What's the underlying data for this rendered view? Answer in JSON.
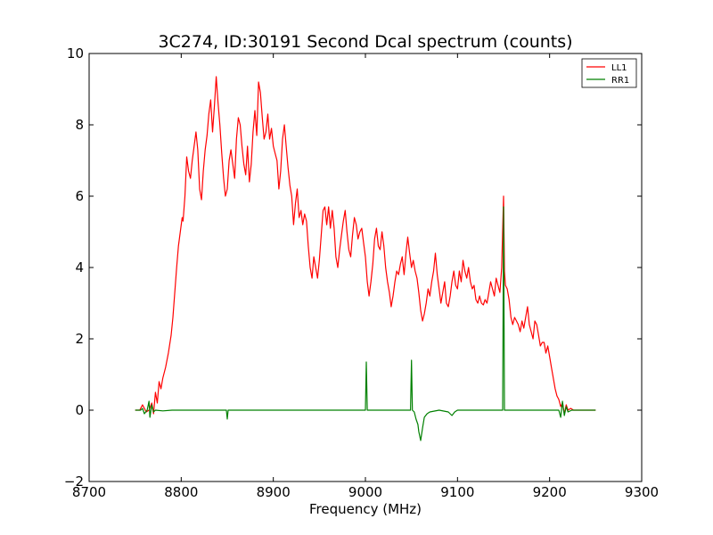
{
  "chart_data": {
    "type": "line",
    "title": "3C274, ID:30191 Second Dcal spectrum (counts)",
    "xlabel": "Frequency (MHz)",
    "ylabel": "",
    "xlim": [
      8700,
      9300
    ],
    "ylim": [
      -2,
      10
    ],
    "xticks": [
      8700,
      8800,
      8900,
      9000,
      9100,
      9200,
      9300
    ],
    "xtick_labels": [
      "8700",
      "8800",
      "8900",
      "9000",
      "9100",
      "9200",
      "9300"
    ],
    "yticks": [
      -2,
      0,
      2,
      4,
      6,
      8,
      10
    ],
    "ytick_labels": [
      "−2",
      "0",
      "2",
      "4",
      "6",
      "8",
      "10"
    ],
    "grid": false,
    "legend": {
      "placement": "top-right"
    },
    "series": [
      {
        "name": "LL1",
        "color": "#ff0000",
        "points": [
          [
            8750,
            0.0
          ],
          [
            8755,
            0.0
          ],
          [
            8758,
            0.15
          ],
          [
            8762,
            -0.05
          ],
          [
            8765,
            0.0
          ],
          [
            8768,
            0.2
          ],
          [
            8770,
            -0.1
          ],
          [
            8772,
            0.5
          ],
          [
            8774,
            0.2
          ],
          [
            8776,
            0.8
          ],
          [
            8778,
            0.6
          ],
          [
            8780,
            0.9
          ],
          [
            8783,
            1.2
          ],
          [
            8786,
            1.6
          ],
          [
            8789,
            2.1
          ],
          [
            8791,
            2.6
          ],
          [
            8793,
            3.3
          ],
          [
            8795,
            4.0
          ],
          [
            8797,
            4.6
          ],
          [
            8799,
            5.0
          ],
          [
            8801,
            5.4
          ],
          [
            8802,
            5.3
          ],
          [
            8804,
            6.0
          ],
          [
            8806,
            7.1
          ],
          [
            8808,
            6.7
          ],
          [
            8810,
            6.5
          ],
          [
            8812,
            7.0
          ],
          [
            8814,
            7.4
          ],
          [
            8816,
            7.8
          ],
          [
            8818,
            7.3
          ],
          [
            8820,
            6.2
          ],
          [
            8822,
            5.9
          ],
          [
            8824,
            6.7
          ],
          [
            8826,
            7.3
          ],
          [
            8828,
            7.7
          ],
          [
            8830,
            8.3
          ],
          [
            8832,
            8.7
          ],
          [
            8834,
            7.8
          ],
          [
            8836,
            8.5
          ],
          [
            8838,
            9.35
          ],
          [
            8840,
            8.6
          ],
          [
            8842,
            8.0
          ],
          [
            8844,
            7.2
          ],
          [
            8846,
            6.5
          ],
          [
            8848,
            6.0
          ],
          [
            8850,
            6.2
          ],
          [
            8852,
            7.0
          ],
          [
            8854,
            7.3
          ],
          [
            8856,
            6.9
          ],
          [
            8858,
            6.5
          ],
          [
            8860,
            7.6
          ],
          [
            8862,
            8.2
          ],
          [
            8864,
            8.0
          ],
          [
            8866,
            7.4
          ],
          [
            8868,
            6.9
          ],
          [
            8870,
            6.6
          ],
          [
            8872,
            7.4
          ],
          [
            8874,
            6.4
          ],
          [
            8876,
            6.9
          ],
          [
            8878,
            7.8
          ],
          [
            8880,
            8.4
          ],
          [
            8882,
            7.7
          ],
          [
            8884,
            9.2
          ],
          [
            8886,
            8.9
          ],
          [
            8888,
            8.2
          ],
          [
            8890,
            7.6
          ],
          [
            8892,
            7.8
          ],
          [
            8894,
            8.3
          ],
          [
            8896,
            7.6
          ],
          [
            8898,
            7.9
          ],
          [
            8900,
            7.4
          ],
          [
            8902,
            7.2
          ],
          [
            8904,
            7.0
          ],
          [
            8906,
            6.2
          ],
          [
            8908,
            6.7
          ],
          [
            8910,
            7.6
          ],
          [
            8912,
            8.0
          ],
          [
            8914,
            7.4
          ],
          [
            8916,
            6.8
          ],
          [
            8918,
            6.3
          ],
          [
            8920,
            6.0
          ],
          [
            8922,
            5.2
          ],
          [
            8924,
            5.8
          ],
          [
            8926,
            6.2
          ],
          [
            8928,
            5.4
          ],
          [
            8930,
            5.6
          ],
          [
            8932,
            5.2
          ],
          [
            8934,
            5.5
          ],
          [
            8936,
            5.3
          ],
          [
            8938,
            4.6
          ],
          [
            8940,
            4.0
          ],
          [
            8942,
            3.7
          ],
          [
            8944,
            4.3
          ],
          [
            8946,
            4.0
          ],
          [
            8948,
            3.7
          ],
          [
            8950,
            4.2
          ],
          [
            8952,
            4.9
          ],
          [
            8954,
            5.6
          ],
          [
            8956,
            5.7
          ],
          [
            8958,
            5.2
          ],
          [
            8960,
            5.7
          ],
          [
            8962,
            5.1
          ],
          [
            8964,
            5.6
          ],
          [
            8966,
            5.1
          ],
          [
            8968,
            4.3
          ],
          [
            8970,
            4.0
          ],
          [
            8972,
            4.5
          ],
          [
            8974,
            4.9
          ],
          [
            8976,
            5.3
          ],
          [
            8978,
            5.6
          ],
          [
            8980,
            5.0
          ],
          [
            8982,
            4.5
          ],
          [
            8984,
            4.3
          ],
          [
            8986,
            4.9
          ],
          [
            8988,
            5.4
          ],
          [
            8990,
            5.2
          ],
          [
            8992,
            4.8
          ],
          [
            8994,
            5.0
          ],
          [
            8996,
            5.1
          ],
          [
            8998,
            4.7
          ],
          [
            9000,
            4.3
          ],
          [
            9002,
            3.6
          ],
          [
            9004,
            3.2
          ],
          [
            9006,
            3.6
          ],
          [
            9008,
            4.1
          ],
          [
            9010,
            4.8
          ],
          [
            9012,
            5.1
          ],
          [
            9014,
            4.6
          ],
          [
            9016,
            4.5
          ],
          [
            9018,
            5.0
          ],
          [
            9020,
            4.6
          ],
          [
            9022,
            4.0
          ],
          [
            9024,
            3.6
          ],
          [
            9026,
            3.3
          ],
          [
            9028,
            2.9
          ],
          [
            9030,
            3.2
          ],
          [
            9032,
            3.6
          ],
          [
            9034,
            3.9
          ],
          [
            9036,
            3.8
          ],
          [
            9038,
            4.1
          ],
          [
            9040,
            4.3
          ],
          [
            9042,
            3.8
          ],
          [
            9044,
            4.4
          ],
          [
            9046,
            4.85
          ],
          [
            9048,
            4.4
          ],
          [
            9050,
            4.0
          ],
          [
            9052,
            4.2
          ],
          [
            9054,
            3.9
          ],
          [
            9056,
            3.7
          ],
          [
            9058,
            3.3
          ],
          [
            9060,
            2.8
          ],
          [
            9062,
            2.5
          ],
          [
            9064,
            2.7
          ],
          [
            9066,
            3.0
          ],
          [
            9068,
            3.4
          ],
          [
            9070,
            3.2
          ],
          [
            9072,
            3.6
          ],
          [
            9074,
            3.9
          ],
          [
            9076,
            4.4
          ],
          [
            9078,
            3.8
          ],
          [
            9080,
            3.4
          ],
          [
            9082,
            3.0
          ],
          [
            9084,
            3.3
          ],
          [
            9086,
            3.6
          ],
          [
            9088,
            3.0
          ],
          [
            9090,
            2.9
          ],
          [
            9092,
            3.2
          ],
          [
            9094,
            3.6
          ],
          [
            9096,
            3.9
          ],
          [
            9098,
            3.5
          ],
          [
            9100,
            3.4
          ],
          [
            9102,
            3.9
          ],
          [
            9104,
            3.6
          ],
          [
            9106,
            4.2
          ],
          [
            9108,
            3.9
          ],
          [
            9110,
            3.7
          ],
          [
            9112,
            4.0
          ],
          [
            9114,
            3.6
          ],
          [
            9116,
            3.4
          ],
          [
            9118,
            3.5
          ],
          [
            9120,
            3.1
          ],
          [
            9122,
            3.0
          ],
          [
            9124,
            3.2
          ],
          [
            9126,
            3.0
          ],
          [
            9128,
            2.95
          ],
          [
            9130,
            3.1
          ],
          [
            9132,
            3.0
          ],
          [
            9134,
            3.3
          ],
          [
            9136,
            3.6
          ],
          [
            9138,
            3.4
          ],
          [
            9140,
            3.2
          ],
          [
            9142,
            3.7
          ],
          [
            9144,
            3.5
          ],
          [
            9146,
            3.3
          ],
          [
            9148,
            4.0
          ],
          [
            9150,
            6.0
          ],
          [
            9151,
            3.9
          ],
          [
            9152,
            3.5
          ],
          [
            9154,
            3.4
          ],
          [
            9156,
            3.1
          ],
          [
            9158,
            2.6
          ],
          [
            9160,
            2.4
          ],
          [
            9162,
            2.6
          ],
          [
            9164,
            2.5
          ],
          [
            9166,
            2.4
          ],
          [
            9168,
            2.2
          ],
          [
            9170,
            2.5
          ],
          [
            9172,
            2.3
          ],
          [
            9174,
            2.6
          ],
          [
            9176,
            2.9
          ],
          [
            9178,
            2.4
          ],
          [
            9180,
            2.2
          ],
          [
            9182,
            2.0
          ],
          [
            9184,
            2.5
          ],
          [
            9186,
            2.4
          ],
          [
            9188,
            2.1
          ],
          [
            9190,
            1.8
          ],
          [
            9192,
            1.9
          ],
          [
            9194,
            1.9
          ],
          [
            9196,
            1.6
          ],
          [
            9198,
            1.8
          ],
          [
            9200,
            1.5
          ],
          [
            9202,
            1.2
          ],
          [
            9204,
            0.9
          ],
          [
            9206,
            0.6
          ],
          [
            9208,
            0.4
          ],
          [
            9210,
            0.3
          ],
          [
            9212,
            0.1
          ],
          [
            9214,
            0.2
          ],
          [
            9216,
            -0.1
          ],
          [
            9218,
            0.15
          ],
          [
            9220,
            0.0
          ],
          [
            9223,
            0.05
          ],
          [
            9226,
            0.0
          ],
          [
            9230,
            0.0
          ],
          [
            9240,
            0.0
          ],
          [
            9250,
            0.0
          ]
        ]
      },
      {
        "name": "RR1",
        "color": "#008000",
        "points": [
          [
            8750,
            0.0
          ],
          [
            8756,
            0.0
          ],
          [
            8758,
            0.05
          ],
          [
            8760,
            -0.1
          ],
          [
            8763,
            0.0
          ],
          [
            8765,
            0.25
          ],
          [
            8766,
            -0.2
          ],
          [
            8768,
            0.15
          ],
          [
            8770,
            -0.05
          ],
          [
            8772,
            0.0
          ],
          [
            8780,
            -0.02
          ],
          [
            8790,
            0.0
          ],
          [
            8800,
            0.0
          ],
          [
            8820,
            0.0
          ],
          [
            8840,
            0.0
          ],
          [
            8849,
            0.0
          ],
          [
            8850,
            -0.25
          ],
          [
            8851,
            0.0
          ],
          [
            8870,
            0.0
          ],
          [
            8900,
            0.0
          ],
          [
            8930,
            0.0
          ],
          [
            8960,
            0.0
          ],
          [
            8990,
            0.0
          ],
          [
            9000,
            0.0
          ],
          [
            9001,
            1.35
          ],
          [
            9002,
            0.0
          ],
          [
            9030,
            0.0
          ],
          [
            9049,
            0.0
          ],
          [
            9050,
            1.4
          ],
          [
            9051,
            0.0
          ],
          [
            9053,
            -0.05
          ],
          [
            9055,
            -0.25
          ],
          [
            9057,
            -0.4
          ],
          [
            9058,
            -0.6
          ],
          [
            9060,
            -0.85
          ],
          [
            9062,
            -0.5
          ],
          [
            9064,
            -0.2
          ],
          [
            9067,
            -0.1
          ],
          [
            9070,
            -0.05
          ],
          [
            9080,
            0.0
          ],
          [
            9090,
            -0.05
          ],
          [
            9094,
            -0.15
          ],
          [
            9097,
            -0.05
          ],
          [
            9100,
            0.0
          ],
          [
            9120,
            0.0
          ],
          [
            9149,
            0.0
          ],
          [
            9150,
            5.7
          ],
          [
            9151,
            0.0
          ],
          [
            9170,
            0.0
          ],
          [
            9200,
            0.0
          ],
          [
            9210,
            0.0
          ],
          [
            9212,
            -0.2
          ],
          [
            9214,
            0.25
          ],
          [
            9216,
            -0.15
          ],
          [
            9218,
            0.1
          ],
          [
            9220,
            -0.05
          ],
          [
            9224,
            0.0
          ],
          [
            9235,
            0.0
          ],
          [
            9250,
            0.0
          ]
        ]
      }
    ]
  }
}
